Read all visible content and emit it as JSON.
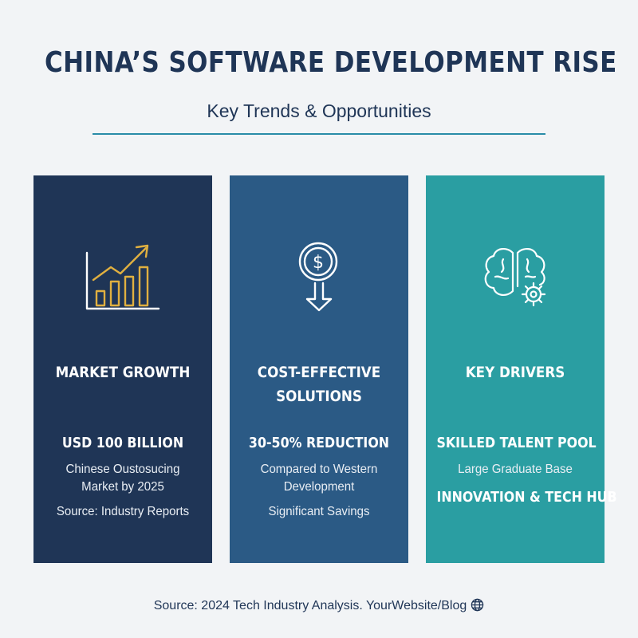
{
  "title": "CHINA’S SOFTWARE DEVELOPMENT RISE",
  "subtitle": "Key Trends & Opportunities",
  "colors": {
    "background": "#f2f4f6",
    "title": "#1f3556",
    "accent_line": "#2a8ca8",
    "card_1": "#1f3556",
    "card_2": "#2b5a85",
    "card_3": "#2a9ea2",
    "gold_icon": "#e0b040"
  },
  "cards": [
    {
      "icon": "growth-chart-icon",
      "heading": "MARKET GROWTH",
      "stat": "USD 100 BILLION",
      "detail": "Chinese Oustosucing Market by 2025",
      "note": "Source: Industry Reports"
    },
    {
      "icon": "dollar-down-arrow-icon",
      "heading": "COST-EFFECTIVE SOLUTIONS",
      "stat": "30-50% REDUCTION",
      "detail": "Compared to Western Development",
      "note": "Significant Savings"
    },
    {
      "icon": "brain-gear-icon",
      "heading": "KEY DRIVERS",
      "stat": "SKILLED TALENT POOL",
      "detail": "Large Graduate Base",
      "stat2": "INNOVATION & TECH HUB"
    }
  ],
  "footer": {
    "text": "Source: 2024 Tech Industry Analysis. YourWebsite/Blog",
    "icon": "globe-icon"
  }
}
